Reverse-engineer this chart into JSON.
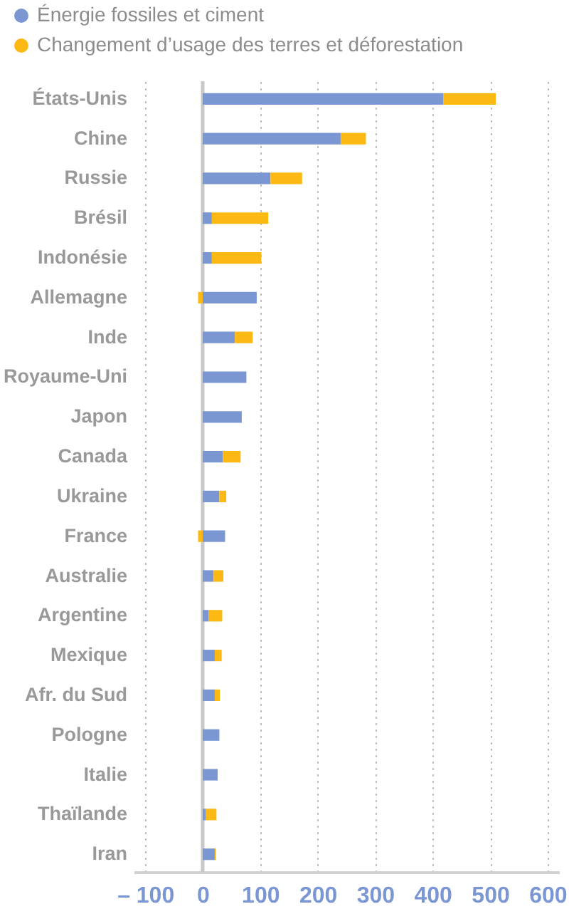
{
  "chart_data": {
    "type": "bar",
    "orientation": "horizontal",
    "stacked": true,
    "categories": [
      "États-Unis",
      "Chine",
      "Russie",
      "Brésil",
      "Indonésie",
      "Allemagne",
      "Inde",
      "Royaume-Uni",
      "Japon",
      "Canada",
      "Ukraine",
      "France",
      "Australie",
      "Argentine",
      "Mexique",
      "Afr. du Sud",
      "Pologne",
      "Italie",
      "Thaïlande",
      "Iran"
    ],
    "series": [
      {
        "name": "Énergie fossiles et ciment",
        "color": "#7b97d3",
        "values": [
          419,
          240,
          118,
          16,
          16,
          94,
          56,
          76,
          68,
          35,
          29,
          39,
          19,
          10,
          21,
          21,
          29,
          26,
          5,
          21
        ]
      },
      {
        "name": "Changement d’usage des terres et déforestation",
        "color": "#fdb913",
        "values": [
          91,
          44,
          55,
          98,
          86,
          -8,
          31,
          null,
          null,
          31,
          12,
          -8,
          17,
          24,
          12,
          9,
          null,
          null,
          19,
          2
        ]
      }
    ],
    "xlim": [
      -120,
      620
    ],
    "xticks": [
      {
        "value": -100,
        "label": "– 100"
      },
      0,
      100,
      200,
      300,
      400,
      500,
      600
    ],
    "grid": "x",
    "legend": "top left",
    "ref_lines": [
      {
        "axis": "x",
        "value": 0,
        "color": "#c8c8c8"
      }
    ]
  }
}
